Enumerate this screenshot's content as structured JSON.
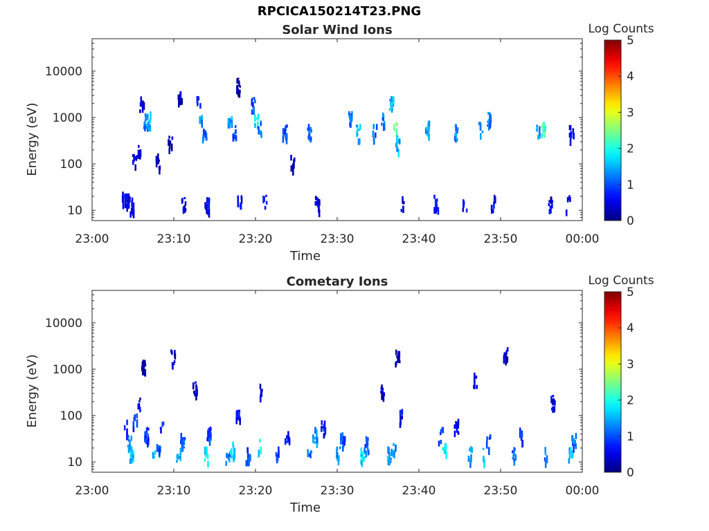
{
  "figure": {
    "title": "RPCICA150214T23.PNG"
  },
  "chart_data": [
    {
      "type": "heatmap",
      "title": "Solar Wind Ions",
      "xlabel": "Time",
      "ylabel": "Energy (eV)",
      "x_range": [
        "23:00",
        "00:00"
      ],
      "y_scale": "log",
      "ylim": [
        6,
        50000
      ],
      "x_ticks": [
        "23:00",
        "23:10",
        "23:20",
        "23:30",
        "23:40",
        "23:50",
        "00:00"
      ],
      "y_ticks": [
        {
          "value": 10,
          "label": "10"
        },
        {
          "value": 100,
          "label": "100"
        },
        {
          "value": 1000,
          "label": "1000"
        },
        {
          "value": 10000,
          "label": "10000"
        }
      ],
      "colorbar": {
        "label": "Log Counts",
        "range": [
          0,
          5
        ],
        "ticks": [
          "0",
          "1",
          "2",
          "3",
          "4",
          "5"
        ],
        "colormap": "jet"
      },
      "grid": false,
      "cells": [
        {
          "t": 3.8,
          "e": 20,
          "c": 0.6
        },
        {
          "t": 4.3,
          "e": 16,
          "c": 0.4
        },
        {
          "t": 4.8,
          "e": 13,
          "c": 0.5
        },
        {
          "t": 5.1,
          "e": 120,
          "c": 0.3
        },
        {
          "t": 5.6,
          "e": 180,
          "c": 0.3
        },
        {
          "t": 6.0,
          "e": 2000,
          "c": 0.3
        },
        {
          "t": 6.5,
          "e": 900,
          "c": 1.2
        },
        {
          "t": 6.9,
          "e": 1000,
          "c": 1.6
        },
        {
          "t": 8.0,
          "e": 120,
          "c": 0.3
        },
        {
          "t": 9.5,
          "e": 280,
          "c": 0.3
        },
        {
          "t": 10.7,
          "e": 3500,
          "c": 0.2
        },
        {
          "t": 11.1,
          "e": 15,
          "c": 0.5
        },
        {
          "t": 13.0,
          "e": 2000,
          "c": 0.8
        },
        {
          "t": 13.3,
          "e": 1000,
          "c": 1.3
        },
        {
          "t": 13.7,
          "e": 500,
          "c": 1.1
        },
        {
          "t": 14.0,
          "e": 15,
          "c": 0.5
        },
        {
          "t": 16.8,
          "e": 1000,
          "c": 1.4
        },
        {
          "t": 17.3,
          "e": 500,
          "c": 1.1
        },
        {
          "t": 17.8,
          "e": 5000,
          "c": 0.2
        },
        {
          "t": 18.0,
          "e": 15,
          "c": 0.6
        },
        {
          "t": 19.7,
          "e": 2000,
          "c": 1.0
        },
        {
          "t": 20.0,
          "e": 1000,
          "c": 1.8
        },
        {
          "t": 20.4,
          "e": 600,
          "c": 1.2
        },
        {
          "t": 21.0,
          "e": 15,
          "c": 0.6
        },
        {
          "t": 23.5,
          "e": 500,
          "c": 1.0
        },
        {
          "t": 24.5,
          "e": 110,
          "c": 0.3
        },
        {
          "t": 26.5,
          "e": 500,
          "c": 1.2
        },
        {
          "t": 27.5,
          "e": 15,
          "c": 0.5
        },
        {
          "t": 31.5,
          "e": 1000,
          "c": 1.1
        },
        {
          "t": 32.5,
          "e": 500,
          "c": 1.5
        },
        {
          "t": 34.5,
          "e": 500,
          "c": 1.1
        },
        {
          "t": 35.5,
          "e": 1000,
          "c": 1.2
        },
        {
          "t": 36.6,
          "e": 2000,
          "c": 1.6
        },
        {
          "t": 37.0,
          "e": 600,
          "c": 2.3
        },
        {
          "t": 37.3,
          "e": 300,
          "c": 1.5
        },
        {
          "t": 37.8,
          "e": 15,
          "c": 0.5
        },
        {
          "t": 41.0,
          "e": 600,
          "c": 1.4
        },
        {
          "t": 42.0,
          "e": 15,
          "c": 0.6
        },
        {
          "t": 44.5,
          "e": 500,
          "c": 1.3
        },
        {
          "t": 45.5,
          "e": 15,
          "c": 0.6
        },
        {
          "t": 47.5,
          "e": 600,
          "c": 1.5
        },
        {
          "t": 48.5,
          "e": 1000,
          "c": 1.2
        },
        {
          "t": 49.0,
          "e": 15,
          "c": 0.6
        },
        {
          "t": 54.5,
          "e": 500,
          "c": 1.4
        },
        {
          "t": 55.2,
          "e": 600,
          "c": 2.1
        },
        {
          "t": 56.0,
          "e": 15,
          "c": 0.5
        },
        {
          "t": 58.2,
          "e": 15,
          "c": 0.6
        },
        {
          "t": 58.6,
          "e": 500,
          "c": 0.5
        }
      ]
    },
    {
      "type": "heatmap",
      "title": "Cometary Ions",
      "xlabel": "Time",
      "ylabel": "Energy (eV)",
      "x_range": [
        "23:00",
        "00:00"
      ],
      "y_scale": "log",
      "ylim": [
        6,
        50000
      ],
      "x_ticks": [
        "23:00",
        "23:10",
        "23:20",
        "23:30",
        "23:40",
        "23:50",
        "00:00"
      ],
      "y_ticks": [
        {
          "value": 10,
          "label": "10"
        },
        {
          "value": 100,
          "label": "100"
        },
        {
          "value": 1000,
          "label": "1000"
        },
        {
          "value": 10000,
          "label": "10000"
        }
      ],
      "colorbar": {
        "label": "Log Counts",
        "range": [
          0,
          5
        ],
        "ticks": [
          "0",
          "1",
          "2",
          "3",
          "4",
          "5"
        ],
        "colormap": "jet"
      },
      "grid": false,
      "cells": [
        {
          "t": 4.0,
          "e": 60,
          "c": 0.8
        },
        {
          "t": 4.5,
          "e": 30,
          "c": 1.2
        },
        {
          "t": 4.8,
          "e": 15,
          "c": 1.6
        },
        {
          "t": 5.2,
          "e": 80,
          "c": 0.9
        },
        {
          "t": 5.6,
          "e": 180,
          "c": 0.4
        },
        {
          "t": 6.2,
          "e": 1100,
          "c": 0.2
        },
        {
          "t": 6.6,
          "e": 40,
          "c": 0.8
        },
        {
          "t": 7.6,
          "e": 15,
          "c": 1.4
        },
        {
          "t": 8.0,
          "e": 25,
          "c": 1.1
        },
        {
          "t": 8.5,
          "e": 60,
          "c": 0.7
        },
        {
          "t": 9.8,
          "e": 2000,
          "c": 0.3
        },
        {
          "t": 10.5,
          "e": 15,
          "c": 1.3
        },
        {
          "t": 11.0,
          "e": 30,
          "c": 1.0
        },
        {
          "t": 12.5,
          "e": 400,
          "c": 0.3
        },
        {
          "t": 13.9,
          "e": 15,
          "c": 1.8
        },
        {
          "t": 14.2,
          "e": 40,
          "c": 0.9
        },
        {
          "t": 16.5,
          "e": 15,
          "c": 1.3
        },
        {
          "t": 17.1,
          "e": 20,
          "c": 1.6
        },
        {
          "t": 17.8,
          "e": 100,
          "c": 0.6
        },
        {
          "t": 19.0,
          "e": 15,
          "c": 1.0
        },
        {
          "t": 20.3,
          "e": 25,
          "c": 1.8
        },
        {
          "t": 20.7,
          "e": 400,
          "c": 0.4
        },
        {
          "t": 22.5,
          "e": 15,
          "c": 0.9
        },
        {
          "t": 23.8,
          "e": 40,
          "c": 0.8
        },
        {
          "t": 26.5,
          "e": 15,
          "c": 1.1
        },
        {
          "t": 27.2,
          "e": 40,
          "c": 1.3
        },
        {
          "t": 28.2,
          "e": 60,
          "c": 0.6
        },
        {
          "t": 30.0,
          "e": 15,
          "c": 1.4
        },
        {
          "t": 30.6,
          "e": 30,
          "c": 1.0
        },
        {
          "t": 33.0,
          "e": 15,
          "c": 1.7
        },
        {
          "t": 33.5,
          "e": 25,
          "c": 1.0
        },
        {
          "t": 35.5,
          "e": 400,
          "c": 0.3
        },
        {
          "t": 36.3,
          "e": 15,
          "c": 1.5
        },
        {
          "t": 36.9,
          "e": 20,
          "c": 1.2
        },
        {
          "t": 37.3,
          "e": 2000,
          "c": 0.3
        },
        {
          "t": 37.8,
          "e": 100,
          "c": 0.6
        },
        {
          "t": 42.6,
          "e": 40,
          "c": 1.0
        },
        {
          "t": 43.1,
          "e": 20,
          "c": 1.7
        },
        {
          "t": 44.5,
          "e": 60,
          "c": 0.6
        },
        {
          "t": 46.2,
          "e": 15,
          "c": 1.3
        },
        {
          "t": 46.8,
          "e": 600,
          "c": 0.4
        },
        {
          "t": 48.0,
          "e": 15,
          "c": 1.6
        },
        {
          "t": 48.4,
          "e": 30,
          "c": 1.0
        },
        {
          "t": 50.5,
          "e": 2300,
          "c": 0.3
        },
        {
          "t": 51.5,
          "e": 15,
          "c": 1.0
        },
        {
          "t": 52.5,
          "e": 40,
          "c": 0.7
        },
        {
          "t": 55.5,
          "e": 15,
          "c": 1.2
        },
        {
          "t": 56.3,
          "e": 200,
          "c": 0.5
        },
        {
          "t": 58.5,
          "e": 15,
          "c": 1.5
        },
        {
          "t": 58.9,
          "e": 30,
          "c": 1.1
        }
      ]
    }
  ]
}
